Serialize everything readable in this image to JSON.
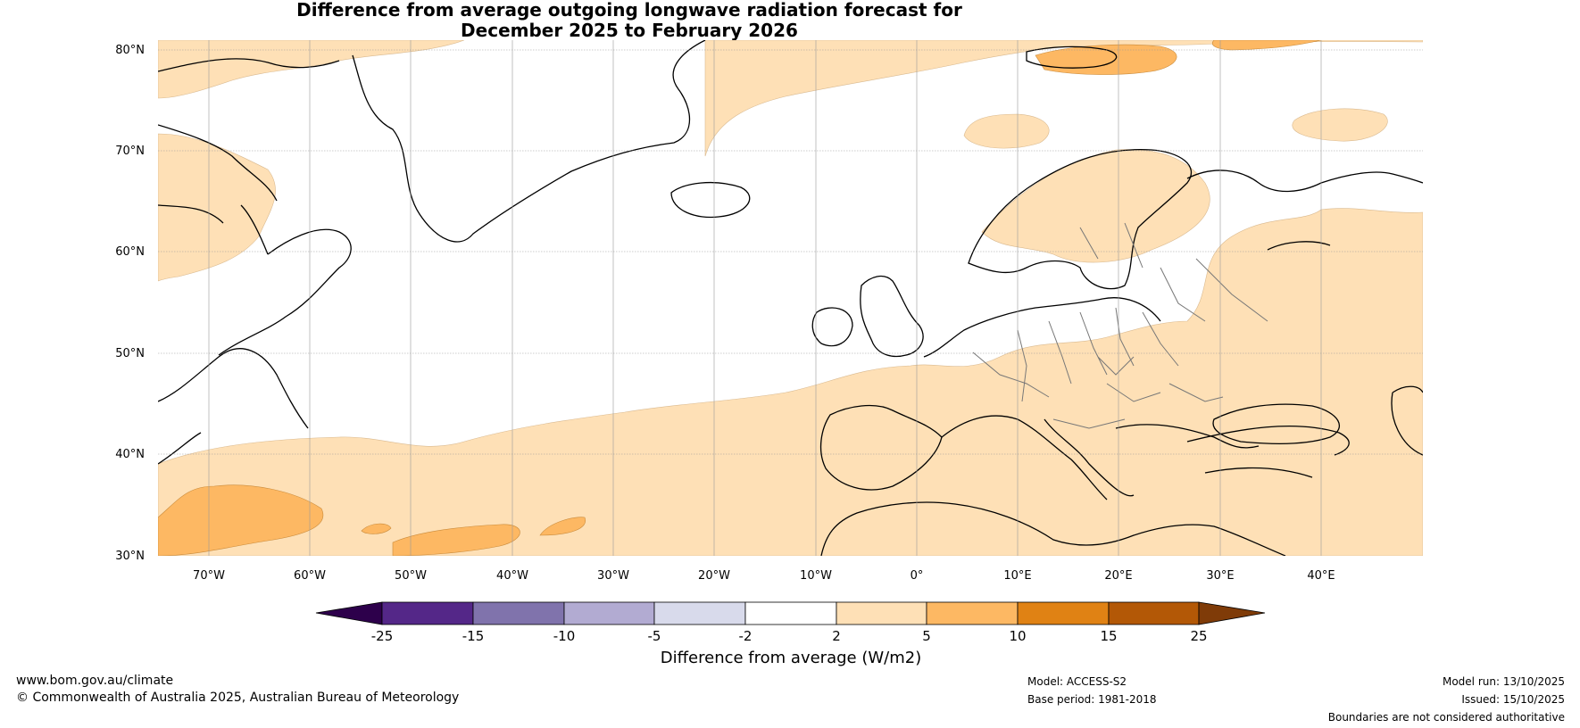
{
  "map": {
    "title_line1": "Difference from average outgoing longwave radiation forecast for",
    "title_line2": "December 2025 to February 2026",
    "lat_labels": [
      "80°N",
      "70°N",
      "60°N",
      "50°N",
      "40°N",
      "30°N"
    ],
    "lon_labels": [
      "70°W",
      "60°W",
      "50°W",
      "40°W",
      "30°W",
      "20°W",
      "10°W",
      "0°",
      "10°E",
      "20°E",
      "30°E",
      "40°E"
    ],
    "extent": {
      "lon_min": -75,
      "lon_max": 50,
      "lat_min": 30,
      "lat_max": 81
    }
  },
  "colorbar": {
    "title": "Difference from average (W/m2)",
    "tick_labels": [
      "-25",
      "-15",
      "-10",
      "-5",
      "-2",
      "2",
      "5",
      "10",
      "15",
      "25"
    ],
    "colors": [
      "#2d004b",
      "#542788",
      "#8073ac",
      "#b2abd2",
      "#d8daeb",
      "#ffffff",
      "#fee0b6",
      "#fdb863",
      "#e08214",
      "#b35806",
      "#7f3b08"
    ]
  },
  "footer": {
    "website": "www.bom.gov.au/climate",
    "copyright": "© Commonwealth of Australia 2025, Australian Bureau of Meteorology",
    "model": "Model: ACCESS-S2",
    "base_period": "Base period: 1981-2018",
    "model_run": "Model run: 13/10/2025",
    "issued": "Issued: 15/10/2025",
    "disclaimer": "Boundaries are not considered authoritative"
  }
}
